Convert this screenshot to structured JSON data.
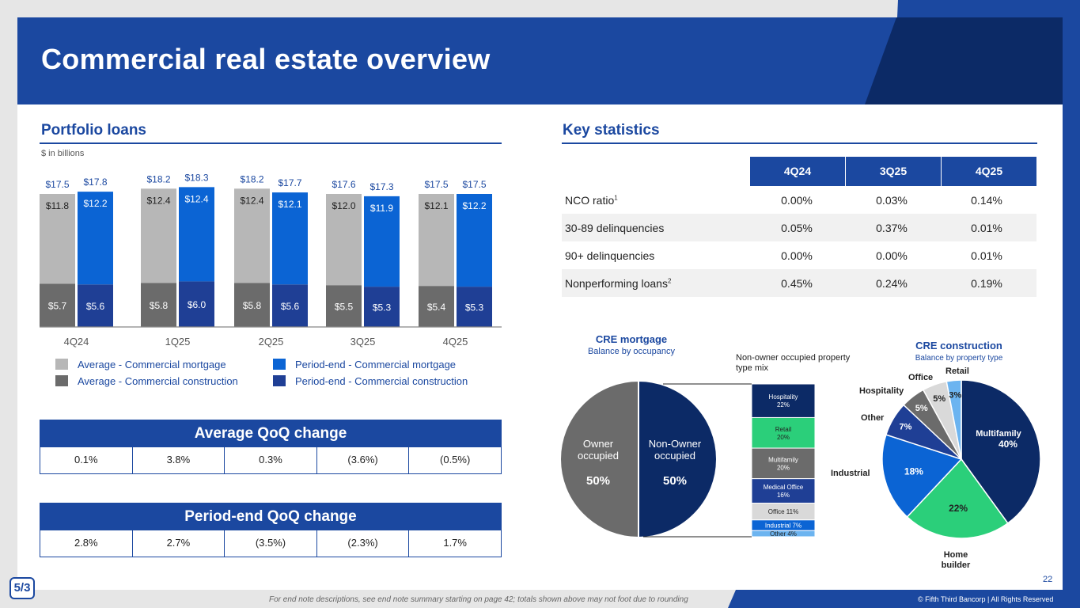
{
  "header": {
    "title": "Commercial real estate overview"
  },
  "portfolio": {
    "title": "Portfolio loans",
    "units": "$ in billions",
    "legend": {
      "avg_mortgage": "Average - Commercial mortgage",
      "avg_construction": "Average - Commercial construction",
      "pe_mortgage": "Period-end - Commercial mortgage",
      "pe_construction": "Period-end - Commercial construction"
    }
  },
  "colors": {
    "brand_blue": "#1b48a0",
    "avg_mortgage": "#b7b7b7",
    "avg_construction": "#6b6b6b",
    "pe_mortgage": "#0b64d4",
    "pe_construction": "#1f3f95",
    "navy": "#0c2a66",
    "green": "#2bcf7a",
    "light_gray": "#d9d9d9",
    "light_blue": "#6cb4f0"
  },
  "chart_data": [
    {
      "type": "bar",
      "stacked": true,
      "categories": [
        "4Q24",
        "1Q25",
        "2Q25",
        "3Q25",
        "4Q25"
      ],
      "series": [
        {
          "name": "Average - Commercial construction",
          "group": "average",
          "values": [
            5.7,
            5.8,
            5.8,
            5.5,
            5.4
          ],
          "labels": [
            "$5.7",
            "$5.8",
            "$5.8",
            "$5.5",
            "$5.4"
          ]
        },
        {
          "name": "Average - Commercial mortgage",
          "group": "average",
          "values": [
            11.8,
            12.4,
            12.4,
            12.0,
            12.1
          ],
          "labels": [
            "$11.8",
            "$12.4",
            "$12.4",
            "$12.0",
            "$12.1"
          ]
        },
        {
          "name": "Period-end - Commercial construction",
          "group": "period-end",
          "values": [
            5.6,
            6.0,
            5.6,
            5.3,
            5.3
          ],
          "labels": [
            "$5.6",
            "$6.0",
            "$5.6",
            "$5.3",
            "$5.3"
          ]
        },
        {
          "name": "Period-end - Commercial mortgage",
          "group": "period-end",
          "values": [
            12.2,
            12.4,
            12.1,
            11.9,
            12.2
          ],
          "labels": [
            "$12.2",
            "$12.4",
            "$12.1",
            "$11.9",
            "$12.2"
          ]
        }
      ],
      "totals": {
        "average": [
          "$17.5",
          "$18.2",
          "$18.2",
          "$17.6",
          "$17.5"
        ],
        "period_end": [
          "$17.8",
          "$18.3",
          "$17.7",
          "$17.3",
          "$17.5"
        ]
      },
      "ylim": [
        0,
        20
      ],
      "legend_position": "bottom"
    },
    {
      "type": "pie",
      "title": "CRE mortgage",
      "subtitle": "Balance by occupancy",
      "labels": [
        "Owner occupied",
        "Non-Owner occupied"
      ],
      "values": [
        50,
        50
      ],
      "value_labels": [
        "50%",
        "50%"
      ]
    },
    {
      "type": "bar",
      "stacked": true,
      "title": "Non-owner occupied property type mix",
      "categories": [
        "Hospitality",
        "Retail",
        "Multifamily",
        "Medical Office",
        "Office",
        "Industrial",
        "Other"
      ],
      "values": [
        22,
        20,
        20,
        16,
        11,
        7,
        4
      ],
      "value_labels": [
        "22%",
        "20%",
        "20%",
        "16%",
        "11%",
        "7%",
        "4%"
      ]
    },
    {
      "type": "pie",
      "title": "CRE construction",
      "subtitle": "Balance by property type",
      "labels": [
        "Multifamily",
        "Home builder",
        "Industrial",
        "Other",
        "Hospitality",
        "Office",
        "Retail"
      ],
      "values": [
        40,
        22,
        18,
        7,
        5,
        5,
        3
      ],
      "value_labels": [
        "40%",
        "22%",
        "18%",
        "7%",
        "5%",
        "5%",
        "3%"
      ]
    }
  ],
  "avg_qoq": {
    "title": "Average QoQ change",
    "values": [
      "0.1%",
      "3.8%",
      "0.3%",
      "(3.6%)",
      "(0.5%)"
    ]
  },
  "pe_qoq": {
    "title": "Period-end QoQ change",
    "values": [
      "2.8%",
      "2.7%",
      "(3.5%)",
      "(2.3%)",
      "1.7%"
    ]
  },
  "key_stats": {
    "title": "Key statistics",
    "columns": [
      "4Q24",
      "3Q25",
      "4Q25"
    ],
    "rows": [
      {
        "label": "NCO ratio",
        "sup": "1",
        "values": [
          "0.00%",
          "0.03%",
          "0.14%"
        ]
      },
      {
        "label": "30-89 delinquencies",
        "sup": "",
        "values": [
          "0.05%",
          "0.37%",
          "0.01%"
        ]
      },
      {
        "label": "90+ delinquencies",
        "sup": "",
        "values": [
          "0.00%",
          "0.00%",
          "0.01%"
        ]
      },
      {
        "label": "Nonperforming loans",
        "sup": "2",
        "values": [
          "0.45%",
          "0.24%",
          "0.19%"
        ]
      }
    ]
  },
  "footer": {
    "note": "For end note descriptions, see end note summary starting on page 42; totals shown above may not foot due to rounding",
    "copyright": "© Fifth Third Bancorp | All Rights Reserved",
    "page": "22",
    "logo_text": "5/3"
  }
}
